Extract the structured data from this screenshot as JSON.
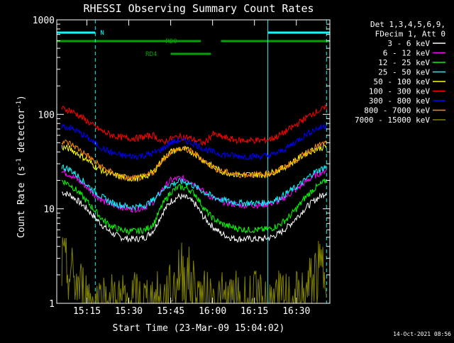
{
  "colors": {
    "background": "#000000",
    "axis": "#ffffff",
    "orbit_markers": "#00ffff",
    "attenuator_bars": "#00a000"
  },
  "chart_data": {
    "type": "line",
    "title": "RHESSI Observing Summary Count Rates",
    "xlabel": "Start Time (23-Mar-09 15:04:02)",
    "ylabel_main": "Count Rate (s",
    "ylabel_sup1": "-1",
    "ylabel_mid": " detector",
    "ylabel_sup2": "-1",
    "ylabel_end": ")",
    "timestamp": "14-Oct-2021 08:56",
    "y_scale": "log",
    "ylim": [
      1,
      1000
    ],
    "xlim_minutes": [
      15.07,
      16.7
    ],
    "x_ticks": [
      {
        "label": "15:15",
        "value": 15.25
      },
      {
        "label": "15:30",
        "value": 15.5
      },
      {
        "label": "15:45",
        "value": 15.75
      },
      {
        "label": "16:00",
        "value": 16.0
      },
      {
        "label": "16:15",
        "value": 16.25
      },
      {
        "label": "16:30",
        "value": 16.5
      }
    ],
    "y_ticks": [
      {
        "label": "1",
        "value": 1
      },
      {
        "label": "10",
        "value": 10
      },
      {
        "label": "100",
        "value": 100
      },
      {
        "label": "1000",
        "value": 1000
      }
    ],
    "legend_header": [
      "Det 1,3,4,5,6,9,",
      "FDecim 1, Att 0"
    ],
    "legend_placement": "right",
    "flags": [
      {
        "label": "N",
        "color": "#00ffff",
        "y_frac": 0.045,
        "segments": [
          [
            15.07,
            15.3
          ],
          [
            16.33,
            16.7
          ]
        ],
        "label_x": 15.33
      },
      {
        "label": "RD0",
        "color": "#00a000",
        "y_frac": 0.075,
        "segments": [
          [
            15.07,
            15.93
          ],
          [
            16.05,
            16.7
          ]
        ],
        "label_x": 15.72
      },
      {
        "label": "RD4",
        "color": "#00a000",
        "y_frac": 0.12,
        "segments": [
          [
            15.75,
            15.99
          ]
        ],
        "label_x": 15.6
      }
    ],
    "vlines": [
      {
        "x": 15.07,
        "color": "#00ffff",
        "style": "solid"
      },
      {
        "x": 15.3,
        "color": "#00ffff",
        "style": "dashed"
      },
      {
        "x": 16.33,
        "color": "#00ffff",
        "style": "solid"
      },
      {
        "x": 16.68,
        "color": "#00ffff",
        "style": "dashed"
      }
    ],
    "x": [
      15.1,
      15.15,
      15.2,
      15.25,
      15.3,
      15.35,
      15.4,
      15.45,
      15.5,
      15.55,
      15.6,
      15.65,
      15.7,
      15.75,
      15.8,
      15.85,
      15.9,
      15.95,
      16.0,
      16.05,
      16.1,
      16.15,
      16.2,
      16.25,
      16.3,
      16.35,
      16.4,
      16.45,
      16.5,
      16.55,
      16.6,
      16.68
    ],
    "series": [
      {
        "name": "3 - 6 keV",
        "color": "#ffffff",
        "values": [
          15,
          14,
          12,
          10,
          8,
          6.5,
          5.5,
          5,
          4.8,
          4.8,
          5,
          6,
          9,
          12,
          13.5,
          13,
          11,
          8,
          6.5,
          5.5,
          5,
          4.8,
          4.8,
          4.8,
          4.8,
          5,
          5.5,
          6.5,
          8,
          10,
          12,
          15
        ]
      },
      {
        "name": "6 - 12 keV",
        "color": "#ff00ff",
        "values": [
          25,
          23,
          20,
          17,
          14,
          12,
          11,
          10.5,
          10,
          10,
          10.5,
          12,
          16,
          20,
          21,
          20.5,
          18,
          15,
          13,
          12,
          11.5,
          11,
          11,
          11,
          11,
          11.5,
          12,
          14,
          16,
          19,
          22,
          26
        ]
      },
      {
        "name": "12 - 25 keV",
        "color": "#00ff00",
        "values": [
          20,
          18,
          15,
          12,
          9.5,
          7.5,
          6.5,
          6,
          5.8,
          5.8,
          6,
          7,
          11,
          15,
          17,
          16.5,
          14,
          10,
          8,
          7,
          6.5,
          6.2,
          6,
          6,
          6,
          6.2,
          6.8,
          8,
          10,
          13,
          16,
          20
        ]
      },
      {
        "name": "25 - 50 keV",
        "color": "#00ffff",
        "values": [
          28,
          26,
          22,
          18,
          15,
          13,
          11.5,
          11,
          10.5,
          10.5,
          11,
          12.5,
          16,
          18,
          19.5,
          19,
          17,
          15,
          13.5,
          12.5,
          12,
          11.5,
          11.5,
          11.5,
          11.5,
          12,
          13,
          15,
          17,
          20,
          24,
          28
        ]
      },
      {
        "name": "50 - 100 keV",
        "color": "#ffff00",
        "values": [
          45,
          43,
          38,
          33,
          28,
          25,
          23,
          22,
          21,
          21,
          22,
          25,
          33,
          40,
          43,
          42,
          38,
          32,
          28,
          25,
          24,
          23,
          23,
          23,
          23,
          24,
          26,
          29,
          33,
          38,
          42,
          46
        ]
      },
      {
        "name": "100 - 300 keV",
        "color": "#ff0000",
        "values": [
          115,
          110,
          98,
          85,
          73,
          65,
          60,
          57,
          56,
          56,
          58,
          60,
          50,
          55,
          58,
          57,
          53,
          49,
          62,
          58,
          55,
          53,
          53,
          53,
          53,
          55,
          60,
          68,
          78,
          90,
          103,
          118
        ]
      },
      {
        "name": "300 - 800 keV",
        "color": "#0000ff",
        "values": [
          75,
          72,
          65,
          57,
          49,
          43,
          39,
          37,
          36,
          36,
          37,
          39,
          43,
          50,
          53,
          52,
          48,
          43,
          40,
          38,
          37,
          36,
          36,
          36,
          36,
          37,
          40,
          45,
          52,
          60,
          68,
          76
        ]
      },
      {
        "name": "800 - 7000 keV",
        "color": "#ff8c00",
        "values": [
          52,
          49,
          43,
          37,
          31,
          27,
          24,
          22,
          21,
          21,
          22,
          25,
          33,
          40,
          43,
          42,
          38,
          32,
          28,
          25,
          24,
          23,
          23,
          23,
          23,
          24,
          26,
          29,
          33,
          38,
          44,
          50
        ]
      },
      {
        "name": "7000 - 15000 keV",
        "color": "#808000",
        "values": [
          2.5,
          2.0,
          1.5,
          1.1,
          1,
          1,
          1,
          1,
          1,
          1,
          1,
          1,
          1,
          1.2,
          2.2,
          2.0,
          1.3,
          1,
          1,
          1,
          1,
          1,
          1,
          1,
          1,
          1,
          1,
          1,
          1,
          1.1,
          1.8,
          2.5
        ]
      }
    ]
  }
}
